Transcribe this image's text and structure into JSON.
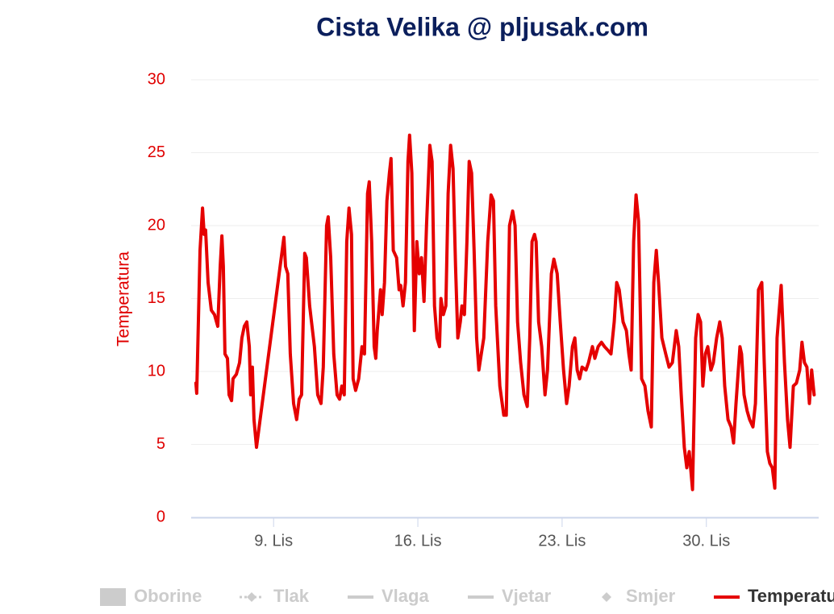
{
  "chart_data": {
    "type": "line",
    "title": "Cista Velika @ pljusak.com",
    "y_axis_label": "Temperatura",
    "xlim": [
      5,
      35.45
    ],
    "xticks": [
      {
        "value": 9,
        "label": "9. Lis"
      },
      {
        "value": 16,
        "label": "16. Lis"
      },
      {
        "value": 23,
        "label": "23. Lis"
      },
      {
        "value": 30,
        "label": "30. Lis"
      }
    ],
    "ylim": [
      0,
      30
    ],
    "yticks": [
      0,
      5,
      10,
      15,
      20,
      25,
      30
    ],
    "grid": true,
    "legend_position": "bottom",
    "legend": [
      {
        "name": "Oborine",
        "symbol": "rect",
        "visible": false
      },
      {
        "name": "Tlak",
        "symbol": "dashed-diamond",
        "visible": false
      },
      {
        "name": "Vlaga",
        "symbol": "line",
        "visible": false
      },
      {
        "name": "Vjetar",
        "symbol": "line",
        "visible": false
      },
      {
        "name": "Smjer",
        "symbol": "diamond",
        "visible": false
      },
      {
        "name": "Temperatura",
        "symbol": "line",
        "visible": true,
        "color": "#e50000"
      }
    ],
    "series": [
      {
        "name": "Temperatura",
        "color": "#e50000",
        "x": [
          5.23,
          5.27,
          5.43,
          5.55,
          5.63,
          5.7,
          5.82,
          5.98,
          6.13,
          6.29,
          6.41,
          6.49,
          6.56,
          6.64,
          6.76,
          6.84,
          6.96,
          7.03,
          7.19,
          7.35,
          7.46,
          7.58,
          7.7,
          7.82,
          7.89,
          7.97,
          8.05,
          8.17,
          9.5,
          9.58,
          9.69,
          9.81,
          9.97,
          10.12,
          10.24,
          10.36,
          10.51,
          10.59,
          10.75,
          10.98,
          11.14,
          11.3,
          11.41,
          11.57,
          11.65,
          11.77,
          11.92,
          12.08,
          12.2,
          12.31,
          12.43,
          12.55,
          12.66,
          12.78,
          12.86,
          12.98,
          13.13,
          13.29,
          13.41,
          13.56,
          13.64,
          13.76,
          13.88,
          13.96,
          14.03,
          14.19,
          14.27,
          14.38,
          14.5,
          14.62,
          14.7,
          14.81,
          14.97,
          15.09,
          15.17,
          15.28,
          15.4,
          15.52,
          15.6,
          15.71,
          15.83,
          15.95,
          16.07,
          16.18,
          16.3,
          16.42,
          16.58,
          16.69,
          16.81,
          16.93,
          17.05,
          17.12,
          17.24,
          17.36,
          17.47,
          17.59,
          17.71,
          17.83,
          17.94,
          18.06,
          18.14,
          18.26,
          18.38,
          18.49,
          18.61,
          18.73,
          18.85,
          18.96,
          19.08,
          19.2,
          19.39,
          19.55,
          19.67,
          19.78,
          19.98,
          20.17,
          20.29,
          20.45,
          20.6,
          20.72,
          20.84,
          20.99,
          21.15,
          21.31,
          21.43,
          21.54,
          21.66,
          21.74,
          21.86,
          22.01,
          22.17,
          22.29,
          22.48,
          22.6,
          22.76,
          22.91,
          23.07,
          23.22,
          23.34,
          23.5,
          23.62,
          23.73,
          23.85,
          23.97,
          24.16,
          24.28,
          24.47,
          24.59,
          24.75,
          24.91,
          25.06,
          25.26,
          25.37,
          25.53,
          25.65,
          25.77,
          25.96,
          26.12,
          26.24,
          26.35,
          26.47,
          26.59,
          26.71,
          26.86,
          27.02,
          27.17,
          27.33,
          27.45,
          27.57,
          27.68,
          27.84,
          28.03,
          28.19,
          28.35,
          28.54,
          28.66,
          28.78,
          28.93,
          29.05,
          29.17,
          29.33,
          29.48,
          29.6,
          29.72,
          29.83,
          29.95,
          30.07,
          30.22,
          30.34,
          30.5,
          30.65,
          30.77,
          30.89,
          31.05,
          31.2,
          31.32,
          31.44,
          31.63,
          31.71,
          31.83,
          31.98,
          32.1,
          32.26,
          32.38,
          32.53,
          32.69,
          32.81,
          32.96,
          33.08,
          33.2,
          33.32,
          33.43,
          33.63,
          33.79,
          33.94,
          34.06,
          34.22,
          34.37,
          34.53,
          34.64,
          34.76,
          34.88,
          35.0,
          35.11,
          35.23
        ],
        "values": [
          9.2,
          8.5,
          18.3,
          21.2,
          19.4,
          19.7,
          16.1,
          14.2,
          13.9,
          13.1,
          17.2,
          19.3,
          17.2,
          11.2,
          10.9,
          8.4,
          8.0,
          9.5,
          9.8,
          10.6,
          12.3,
          13.1,
          13.4,
          11.7,
          8.4,
          10.3,
          6.7,
          4.8,
          19.2,
          17.2,
          16.7,
          11.2,
          7.8,
          6.7,
          8.1,
          8.4,
          18.1,
          17.8,
          14.5,
          11.7,
          8.4,
          7.8,
          10.3,
          20.0,
          20.6,
          17.8,
          11.2,
          8.4,
          8.1,
          9.0,
          8.4,
          18.9,
          21.2,
          19.4,
          9.5,
          8.7,
          9.5,
          11.7,
          11.2,
          22.2,
          23.0,
          18.9,
          11.7,
          10.9,
          12.8,
          15.6,
          13.9,
          16.1,
          21.7,
          23.6,
          24.6,
          18.3,
          17.8,
          15.6,
          15.9,
          14.5,
          16.1,
          24.4,
          26.2,
          23.6,
          12.8,
          18.9,
          16.7,
          17.8,
          14.8,
          20.0,
          25.5,
          24.4,
          14.5,
          12.3,
          11.7,
          15.0,
          13.9,
          14.5,
          22.2,
          25.5,
          23.9,
          17.2,
          12.3,
          13.4,
          14.5,
          13.9,
          18.9,
          24.4,
          23.6,
          18.3,
          12.3,
          10.1,
          11.2,
          12.3,
          18.9,
          22.1,
          21.7,
          14.5,
          9.0,
          7.0,
          7.0,
          20.0,
          21.0,
          20.0,
          13.4,
          10.6,
          8.4,
          7.6,
          12.3,
          18.9,
          19.4,
          18.9,
          13.4,
          11.7,
          8.4,
          10.1,
          16.7,
          17.7,
          16.7,
          13.4,
          10.1,
          7.8,
          9.0,
          11.7,
          12.3,
          10.1,
          9.5,
          10.3,
          10.1,
          10.6,
          11.7,
          10.9,
          11.7,
          12.0,
          11.7,
          11.4,
          11.2,
          13.4,
          16.1,
          15.6,
          13.4,
          12.8,
          11.2,
          10.1,
          18.9,
          22.1,
          20.3,
          9.5,
          9.0,
          7.3,
          6.2,
          16.1,
          18.3,
          16.1,
          12.3,
          11.2,
          10.3,
          10.6,
          12.8,
          11.7,
          8.4,
          4.8,
          3.4,
          4.5,
          1.9,
          12.3,
          13.9,
          13.4,
          9.0,
          11.2,
          11.7,
          10.1,
          10.6,
          12.3,
          13.4,
          12.3,
          9.0,
          6.7,
          6.2,
          5.1,
          7.8,
          11.7,
          11.2,
          8.4,
          7.3,
          6.7,
          6.2,
          7.8,
          15.6,
          16.1,
          10.6,
          4.5,
          3.7,
          3.4,
          2.0,
          12.3,
          15.9,
          10.6,
          6.7,
          4.8,
          9.0,
          9.2,
          10.1,
          12.0,
          10.6,
          10.3,
          7.8,
          10.1,
          8.4
        ]
      }
    ]
  }
}
